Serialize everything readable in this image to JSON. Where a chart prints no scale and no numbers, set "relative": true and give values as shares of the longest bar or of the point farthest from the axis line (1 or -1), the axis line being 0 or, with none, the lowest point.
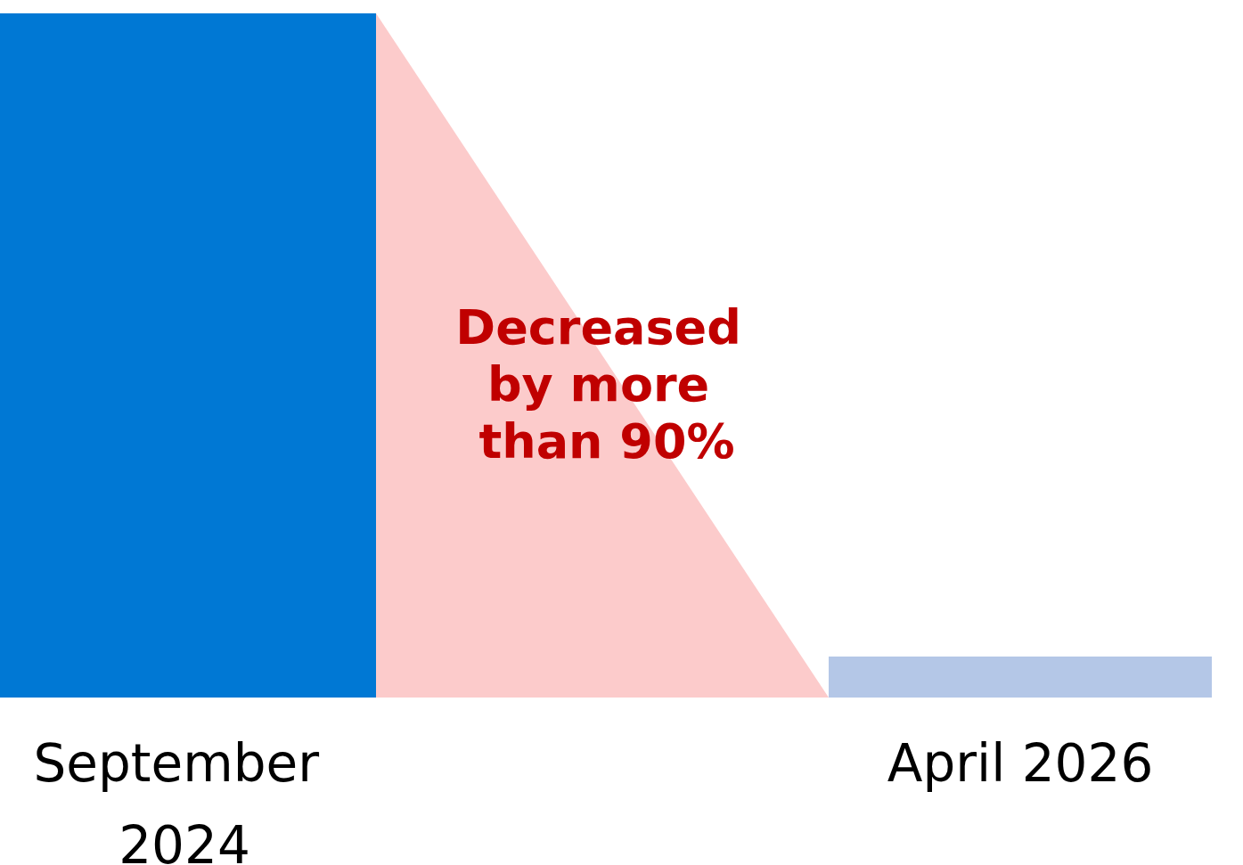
{
  "chart_data": {
    "type": "bar",
    "relative": true,
    "categories": [
      "September 2024",
      "April 2026"
    ],
    "values": [
      1,
      0.06
    ],
    "colors": [
      "#0078d4",
      "#b4c7e7"
    ],
    "annotations": [
      "Decreased by more than 90%"
    ],
    "data_labels": false
  }
}
